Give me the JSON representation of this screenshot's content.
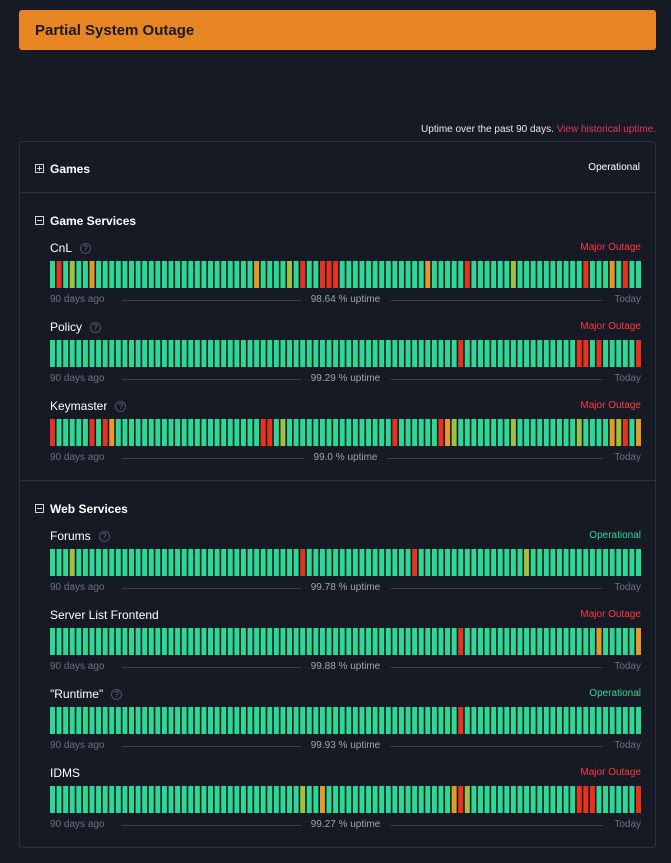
{
  "banner": {
    "text": "Partial System Outage"
  },
  "header": {
    "note": "Uptime over the past 90 days.",
    "link": "View historical uptime."
  },
  "colors": {
    "operational": "#2cd894",
    "major": "#e8321d",
    "partial": "#a1c03c",
    "degraded": "#e59a27",
    "status_red": "#ff3b3b",
    "status_green": "#2cd894"
  },
  "groups": [
    {
      "name": "Games",
      "status": "Operational",
      "expanded": false
    },
    {
      "name": "Game Services",
      "expanded": true
    },
    {
      "name": "Web Services",
      "expanded": true
    }
  ],
  "axis": {
    "left": "90 days ago",
    "right": "Today"
  },
  "components": [
    {
      "name": "CnL",
      "help": "?",
      "status": "Major Outage",
      "status_kind": "major",
      "uptime": "98.64 % uptime",
      "bars": {
        "major": [
          1,
          38,
          41,
          42,
          43,
          63,
          81,
          87
        ],
        "partial": [
          3,
          36,
          70
        ],
        "degraded": [
          6,
          31,
          57,
          85
        ]
      }
    },
    {
      "name": "Policy",
      "help": "?",
      "status": "Major Outage",
      "status_kind": "major",
      "uptime": "99.29 % uptime",
      "bars": {
        "major": [
          62,
          80,
          81,
          83,
          89
        ],
        "partial": [],
        "degraded": []
      }
    },
    {
      "name": "Keymaster",
      "help": "?",
      "status": "Major Outage",
      "status_kind": "major",
      "uptime": "99.0 % uptime",
      "bars": {
        "major": [
          0,
          6,
          8,
          32,
          33,
          52,
          59,
          87
        ],
        "partial": [
          35,
          61,
          70,
          80,
          86
        ],
        "degraded": [
          9,
          60,
          85,
          89
        ]
      }
    },
    {
      "name": "Forums",
      "help": "?",
      "status": "Operational",
      "status_kind": "operational",
      "uptime": "99.78 % uptime",
      "bars": {
        "major": [
          38,
          55
        ],
        "partial": [
          3,
          72
        ],
        "degraded": []
      }
    },
    {
      "name": "Server List Frontend",
      "help": "",
      "status": "Major Outage",
      "status_kind": "major",
      "uptime": "99.88 % uptime",
      "bars": {
        "major": [
          62
        ],
        "partial": [],
        "degraded": [
          83,
          89
        ]
      }
    },
    {
      "name": "\"Runtime\"",
      "help": "?",
      "status": "Operational",
      "status_kind": "operational",
      "uptime": "99.93 % uptime",
      "bars": {
        "major": [
          62
        ],
        "partial": [],
        "degraded": []
      }
    },
    {
      "name": "IDMS",
      "help": "",
      "status": "Major Outage",
      "status_kind": "major",
      "uptime": "99.27 % uptime",
      "bars": {
        "major": [
          62,
          80,
          81,
          82,
          89
        ],
        "partial": [
          38,
          63
        ],
        "degraded": [
          41,
          61
        ]
      }
    }
  ]
}
